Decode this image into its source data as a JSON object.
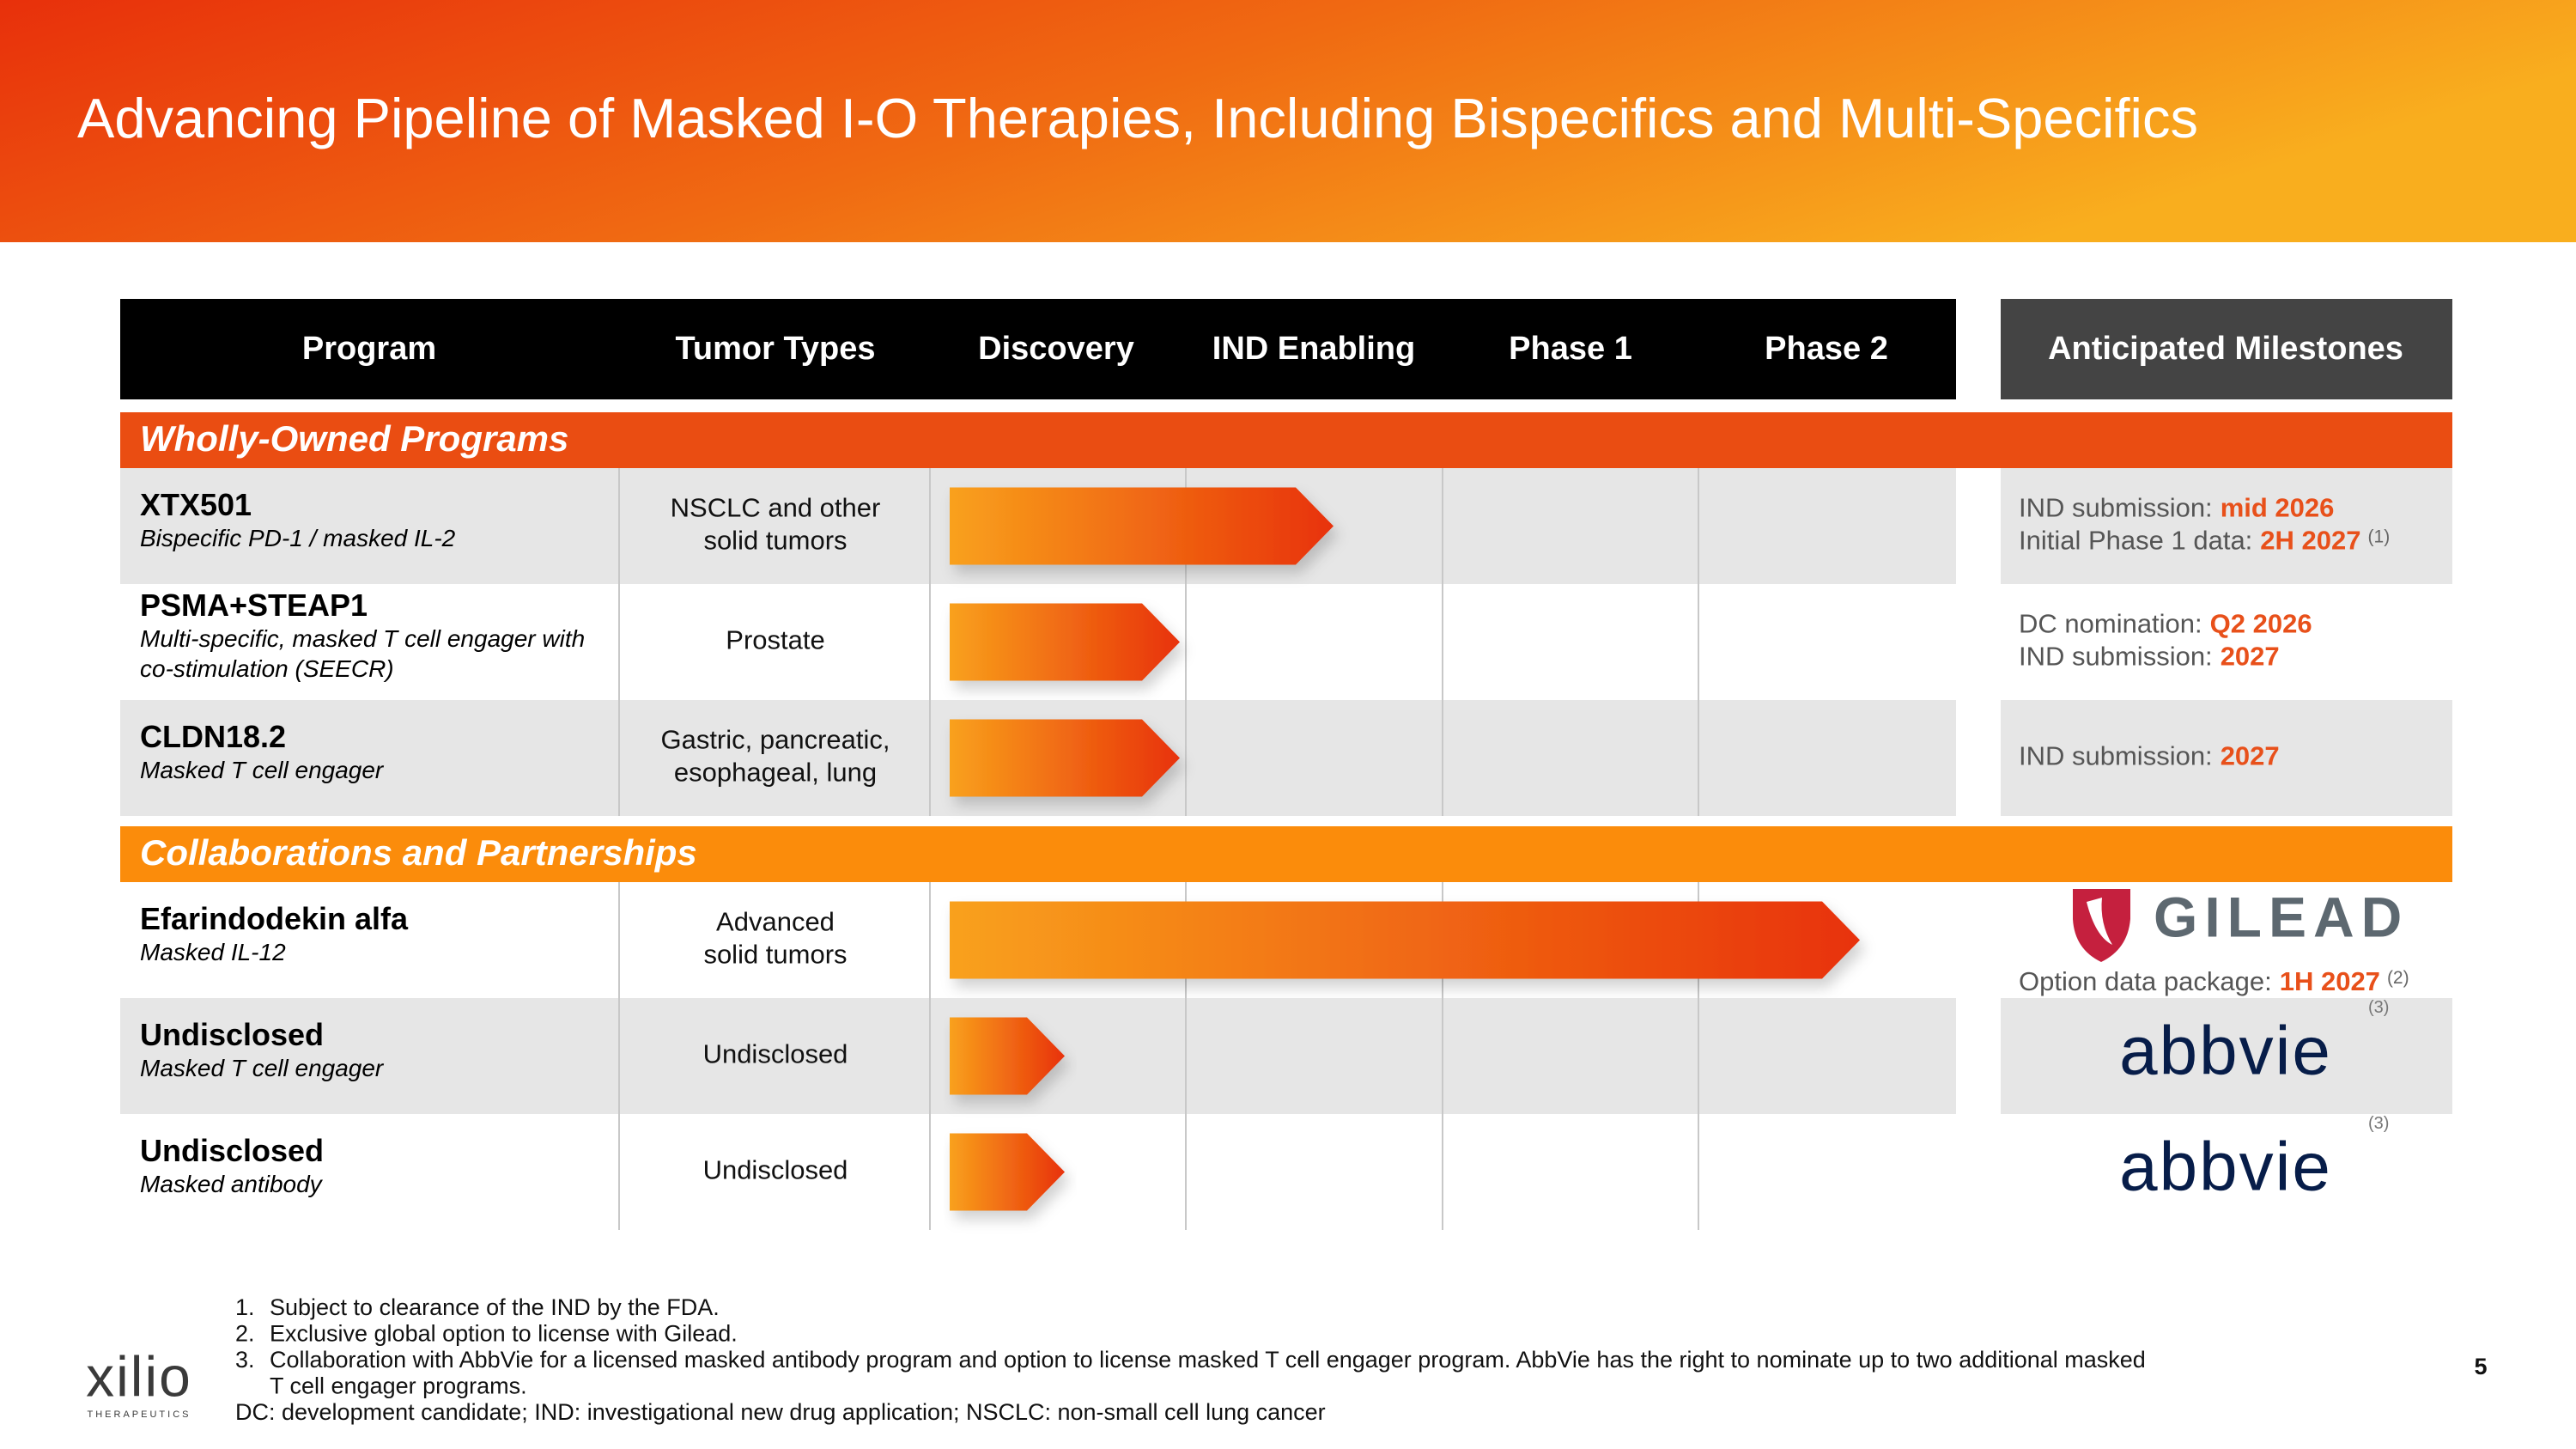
{
  "header": {
    "title": "Advancing Pipeline of Masked I-O Therapies, Including Bispecifics and Multi-Specifics"
  },
  "table": {
    "columns": [
      "Program",
      "Tumor Types",
      "Discovery",
      "IND Enabling",
      "Phase 1",
      "Phase 2",
      "Anticipated Milestones"
    ],
    "sections": [
      {
        "title": "Wholly-Owned Programs",
        "rows": [
          {
            "program": "XTX501",
            "description": [
              "Bispecific PD-1 / masked IL-2"
            ],
            "tumor_types": [
              "NSCLC and other",
              "solid tumors"
            ],
            "milestones": [
              {
                "label": "IND submission:",
                "highlight": "mid 2026"
              },
              {
                "label": "Initial Phase 1 data:",
                "highlight": "2H 2027",
                "note": "(1)"
              }
            ]
          },
          {
            "program": "PSMA+STEAP1",
            "description": [
              "Multi-specific, masked T cell engager with",
              "co-stimulation (SEECR)"
            ],
            "tumor_types": [
              "Prostate"
            ],
            "milestones": [
              {
                "label": "DC nomination:",
                "highlight": "Q2 2026"
              },
              {
                "label": "IND submission:",
                "highlight": "2027"
              }
            ]
          },
          {
            "program": "CLDN18.2",
            "description": [
              "Masked T cell engager"
            ],
            "tumor_types": [
              "Gastric, pancreatic,",
              "esophageal, lung"
            ],
            "milestones": [
              {
                "label": "IND submission:",
                "highlight": "2027"
              }
            ]
          }
        ]
      },
      {
        "title": "Collaborations and Partnerships",
        "rows": [
          {
            "program": "Efarindodekin alfa",
            "description": [
              "Masked IL-12"
            ],
            "tumor_types": [
              "Advanced",
              "solid tumors"
            ],
            "partner": "GILEAD",
            "milestones": [
              {
                "label": "Option data package:",
                "highlight": "1H 2027",
                "note": "(2)"
              }
            ]
          },
          {
            "program": "Undisclosed",
            "description": [
              "Masked T cell engager"
            ],
            "tumor_types": [
              "Undisclosed"
            ],
            "partner": "abbvie",
            "partner_note": "(3)"
          },
          {
            "program": "Undisclosed",
            "description": [
              "Masked antibody"
            ],
            "tumor_types": [
              "Undisclosed"
            ],
            "partner": "abbvie",
            "partner_note": "(3)"
          }
        ]
      }
    ]
  },
  "footnotes": [
    {
      "marker": "1.",
      "lines": [
        "Subject to clearance of the IND by the FDA."
      ]
    },
    {
      "marker": "2.",
      "lines": [
        "Exclusive global option to license with Gilead."
      ]
    },
    {
      "marker": "3.",
      "lines": [
        "Collaboration with AbbVie for a licensed masked antibody program and option to license masked T cell engager program. AbbVie has the right to nominate up to two additional masked",
        "T cell engager programs."
      ]
    }
  ],
  "abbreviations": "DC: development candidate; IND: investigational new drug application; NSCLC: non-small cell lung cancer",
  "page_number": "5",
  "logo": {
    "name": "xilio",
    "tagline": "THERAPEUTICS"
  }
}
